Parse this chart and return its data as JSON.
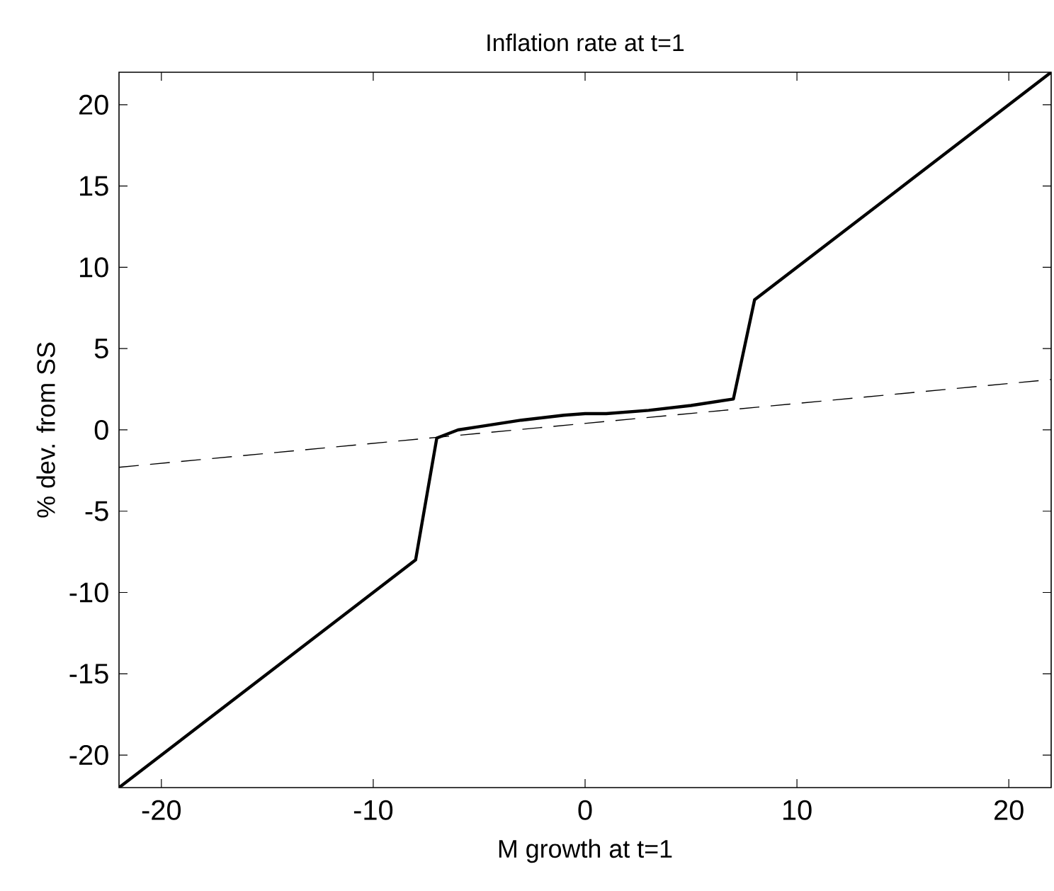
{
  "chart_data": {
    "type": "line",
    "title": "Inflation rate at t=1",
    "xlabel": "M growth at t=1",
    "ylabel": "% dev. from SS",
    "xlim": [
      -22,
      22
    ],
    "ylim": [
      -22,
      22
    ],
    "xticks": [
      -20,
      -10,
      0,
      10,
      20
    ],
    "yticks": [
      -20,
      -15,
      -10,
      -5,
      0,
      5,
      10,
      15,
      20
    ],
    "marker": "none",
    "series": [
      {
        "color": "#000000",
        "line_style": "solid",
        "x": [
          -22,
          -8,
          -7,
          -6,
          -5,
          -3,
          -1,
          0,
          1,
          3,
          5,
          7,
          8,
          22
        ],
        "values": [
          -22,
          -8,
          -0.5,
          0,
          0.2,
          0.6,
          0.9,
          1,
          1,
          1.2,
          1.5,
          1.9,
          8,
          22
        ]
      },
      {
        "color": "#000000",
        "line_style": "dashed",
        "x": [
          -22,
          22
        ],
        "values": [
          -2.3,
          3.1
        ]
      }
    ]
  }
}
